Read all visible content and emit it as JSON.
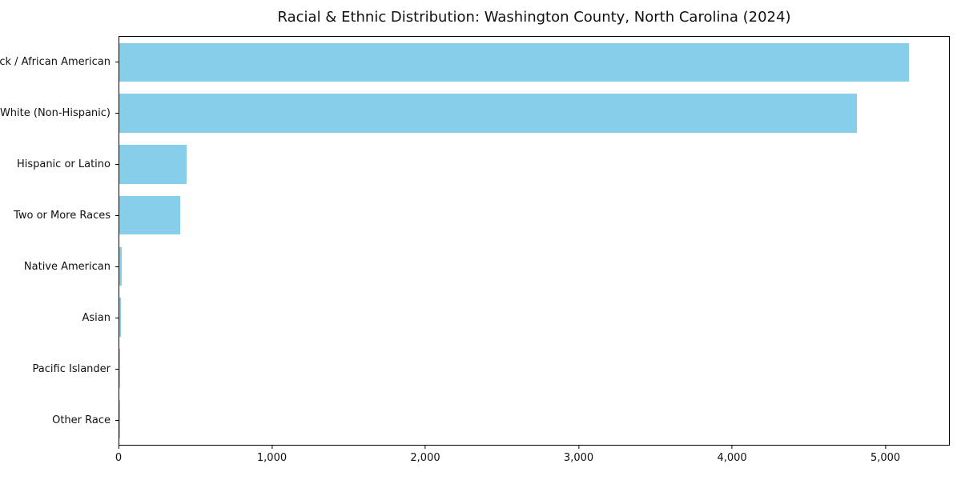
{
  "chart_data": {
    "type": "bar",
    "orientation": "horizontal",
    "title": "Racial & Ethnic Distribution: Washington County, North Carolina (2024)",
    "categories": [
      "Black / African American",
      "White (Non-Hispanic)",
      "Hispanic or Latino",
      "Two or More Races",
      "Native American",
      "Asian",
      "Pacific Islander",
      "Other Race"
    ],
    "values": [
      5160,
      4820,
      440,
      400,
      15,
      10,
      4,
      3
    ],
    "xlabel": "",
    "ylabel": "",
    "xlim": [
      0,
      5420
    ],
    "x_ticks": [
      {
        "value": 0,
        "label": "0"
      },
      {
        "value": 1000,
        "label": "1,000"
      },
      {
        "value": 2000,
        "label": "2,000"
      },
      {
        "value": 3000,
        "label": "3,000"
      },
      {
        "value": 4000,
        "label": "4,000"
      },
      {
        "value": 5000,
        "label": "5,000"
      }
    ],
    "bar_color": "#87ceeb",
    "axis_color": "#000000",
    "background_color": "#ffffff",
    "grid": false,
    "legend": false
  }
}
